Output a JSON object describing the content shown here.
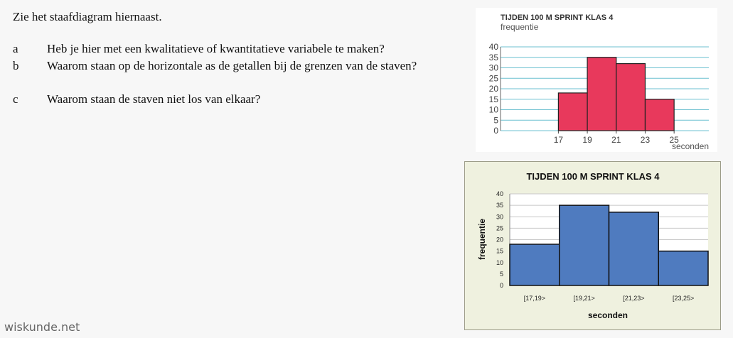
{
  "document": {
    "intro": "Zie het staafdiagram hiernaast.",
    "questions": [
      {
        "letter": "a",
        "text": "Heb je hier met een kwalitatieve of kwantitatieve variabele te maken?"
      },
      {
        "letter": "b",
        "text": "Waarom staan op de horizontale as de getallen bij de grenzen van de staven?"
      },
      {
        "letter": "c",
        "text": "Waarom staan de staven niet los van elkaar?"
      }
    ],
    "footer": "wiskunde.net"
  },
  "chart_data": [
    {
      "type": "bar",
      "title": "TIJDEN 100 M SPRINT KLAS 4",
      "ylabel": "frequentie",
      "xlabel": "seconden",
      "x_ticks": [
        "17",
        "19",
        "21",
        "23",
        "25"
      ],
      "bins": [
        [
          17,
          19
        ],
        [
          19,
          21
        ],
        [
          21,
          23
        ],
        [
          23,
          25
        ]
      ],
      "values": [
        18,
        35,
        32,
        15
      ],
      "ylim": [
        0,
        40
      ],
      "y_ticks": [
        0,
        5,
        10,
        15,
        20,
        25,
        30,
        35,
        40
      ],
      "grid": true,
      "bar_color": "#e8395c"
    },
    {
      "type": "bar",
      "title": "TIJDEN 100 M SPRINT KLAS 4",
      "ylabel": "frequentie",
      "xlabel": "seconden",
      "categories": [
        "[17,19>",
        "[19,21>",
        "[21,23>",
        "[23,25>"
      ],
      "values": [
        18,
        35,
        32,
        15
      ],
      "ylim": [
        0,
        40
      ],
      "y_ticks": [
        0,
        5,
        10,
        15,
        20,
        25,
        30,
        35,
        40
      ],
      "grid": true,
      "bar_color": "#4f7bbf"
    }
  ]
}
